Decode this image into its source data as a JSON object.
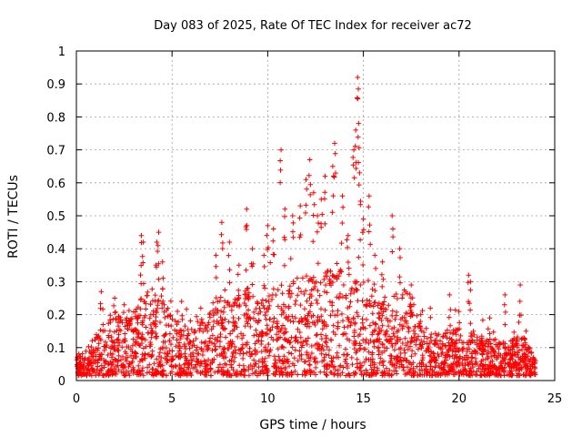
{
  "chart_data": {
    "type": "scatter",
    "title": "Day 083 of 2025, Rate Of TEC Index for receiver ac72",
    "xlabel": "GPS time / hours",
    "ylabel": "ROTI / TECUs",
    "xlim": [
      0,
      25
    ],
    "ylim": [
      0,
      1
    ],
    "x_ticks": [
      0,
      5,
      10,
      15,
      20,
      25
    ],
    "x_tick_labels": [
      "0",
      "5",
      "10",
      "15",
      "20",
      "25"
    ],
    "y_ticks": [
      0,
      0.1,
      0.2,
      0.3,
      0.4,
      0.5,
      0.6,
      0.7,
      0.8,
      0.9,
      1
    ],
    "y_tick_labels": [
      "0",
      "0.1",
      "0.2",
      "0.3",
      "0.4",
      "0.5",
      "0.6",
      "0.7",
      "0.8",
      "0.9",
      "1"
    ],
    "grid": true,
    "marker": "plus",
    "color": "#ff0000",
    "data_x_range": [
      0,
      24
    ],
    "envelope": {
      "x": [
        0,
        0.5,
        1,
        1.5,
        2,
        2.5,
        3,
        3.5,
        4,
        4.5,
        5,
        5.5,
        6,
        6.5,
        7,
        7.5,
        8,
        8.5,
        9,
        9.5,
        10,
        10.5,
        11,
        11.5,
        12,
        12.5,
        13,
        13.5,
        14,
        14.5,
        15,
        15.5,
        16,
        16.5,
        17,
        17.5,
        18,
        18.5,
        19,
        19.5,
        20,
        20.5,
        21,
        21.5,
        22,
        22.5,
        23,
        23.5,
        24
      ],
      "typical_max": [
        0.05,
        0.08,
        0.12,
        0.18,
        0.2,
        0.17,
        0.2,
        0.25,
        0.27,
        0.24,
        0.18,
        0.15,
        0.14,
        0.16,
        0.2,
        0.24,
        0.24,
        0.25,
        0.28,
        0.22,
        0.24,
        0.28,
        0.27,
        0.3,
        0.3,
        0.3,
        0.32,
        0.32,
        0.34,
        0.3,
        0.3,
        0.28,
        0.25,
        0.24,
        0.27,
        0.25,
        0.15,
        0.14,
        0.13,
        0.13,
        0.15,
        0.15,
        0.12,
        0.12,
        0.12,
        0.1,
        0.12,
        0.12,
        0.05
      ]
    },
    "peaks": [
      {
        "x": 1.3,
        "y": 0.27
      },
      {
        "x": 2.0,
        "y": 0.25
      },
      {
        "x": 2.5,
        "y": 0.23
      },
      {
        "x": 3.4,
        "y": 0.44
      },
      {
        "x": 3.5,
        "y": 0.42
      },
      {
        "x": 4.3,
        "y": 0.45
      },
      {
        "x": 4.2,
        "y": 0.42
      },
      {
        "x": 4.5,
        "y": 0.36
      },
      {
        "x": 5.5,
        "y": 0.24
      },
      {
        "x": 6.5,
        "y": 0.22
      },
      {
        "x": 7.3,
        "y": 0.38
      },
      {
        "x": 7.6,
        "y": 0.48
      },
      {
        "x": 8.0,
        "y": 0.42
      },
      {
        "x": 8.5,
        "y": 0.35
      },
      {
        "x": 8.9,
        "y": 0.52
      },
      {
        "x": 9.2,
        "y": 0.4
      },
      {
        "x": 9.8,
        "y": 0.38
      },
      {
        "x": 10.0,
        "y": 0.47
      },
      {
        "x": 10.3,
        "y": 0.46
      },
      {
        "x": 10.7,
        "y": 0.7
      },
      {
        "x": 10.9,
        "y": 0.52
      },
      {
        "x": 11.3,
        "y": 0.5
      },
      {
        "x": 11.7,
        "y": 0.53
      },
      {
        "x": 12.0,
        "y": 0.61
      },
      {
        "x": 12.2,
        "y": 0.67
      },
      {
        "x": 12.4,
        "y": 0.57
      },
      {
        "x": 12.6,
        "y": 0.5
      },
      {
        "x": 12.8,
        "y": 0.55
      },
      {
        "x": 13.0,
        "y": 0.62
      },
      {
        "x": 13.4,
        "y": 0.65
      },
      {
        "x": 13.5,
        "y": 0.72
      },
      {
        "x": 13.9,
        "y": 0.56
      },
      {
        "x": 14.2,
        "y": 0.44
      },
      {
        "x": 14.5,
        "y": 0.7
      },
      {
        "x": 14.6,
        "y": 0.76
      },
      {
        "x": 14.7,
        "y": 0.92
      },
      {
        "x": 14.75,
        "y": 0.78
      },
      {
        "x": 14.8,
        "y": 0.63
      },
      {
        "x": 15.0,
        "y": 0.49
      },
      {
        "x": 15.3,
        "y": 0.56
      },
      {
        "x": 15.6,
        "y": 0.38
      },
      {
        "x": 16.0,
        "y": 0.36
      },
      {
        "x": 16.5,
        "y": 0.5
      },
      {
        "x": 16.9,
        "y": 0.4
      },
      {
        "x": 17.5,
        "y": 0.29
      },
      {
        "x": 18.0,
        "y": 0.2
      },
      {
        "x": 18.5,
        "y": 0.22
      },
      {
        "x": 19.5,
        "y": 0.26
      },
      {
        "x": 20.5,
        "y": 0.32
      },
      {
        "x": 20.6,
        "y": 0.3
      },
      {
        "x": 21.6,
        "y": 0.19
      },
      {
        "x": 22.4,
        "y": 0.26
      },
      {
        "x": 23.2,
        "y": 0.29
      },
      {
        "x": 23.5,
        "y": 0.15
      }
    ]
  }
}
